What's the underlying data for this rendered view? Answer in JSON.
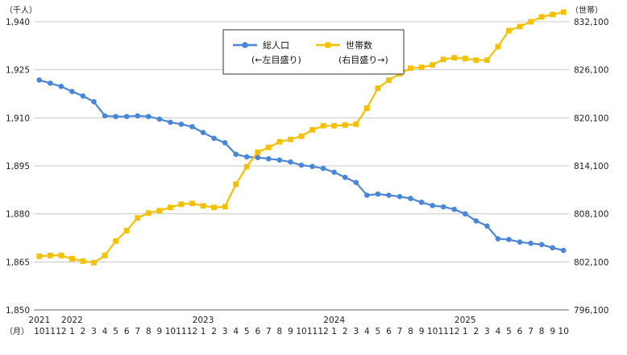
{
  "chart_data": {
    "type": "line",
    "left_axis": {
      "unit": "（千人）",
      "ticks": [
        "1,850",
        "1,865",
        "1,880",
        "1,895",
        "1,910",
        "1,925",
        "1,940"
      ],
      "ylim": [
        1850,
        1940
      ]
    },
    "right_axis": {
      "unit": "（世帯）",
      "ticks": [
        "796,100",
        "802,100",
        "808,100",
        "814,100",
        "820,100",
        "826,100",
        "832,100"
      ],
      "ylim": [
        796100,
        832100
      ]
    },
    "month_axis_unit": "（月）",
    "months": [
      "10",
      "11",
      "12",
      "1",
      "2",
      "3",
      "4",
      "5",
      "6",
      "7",
      "8",
      "9",
      "10",
      "11",
      "12",
      "1",
      "2",
      "3",
      "4",
      "5",
      "6",
      "7",
      "8",
      "9",
      "10",
      "11",
      "12",
      "1",
      "2",
      "3",
      "4",
      "5",
      "6",
      "7",
      "8",
      "9",
      "10",
      "11",
      "12",
      "1",
      "2",
      "3",
      "4",
      "5",
      "6",
      "7",
      "8",
      "9",
      "10"
    ],
    "year_labels": [
      {
        "label": "2021",
        "index": 0
      },
      {
        "label": "2022",
        "index": 3
      },
      {
        "label": "2023",
        "index": 15
      },
      {
        "label": "2024",
        "index": 27
      },
      {
        "label": "2025",
        "index": 39
      }
    ],
    "series": [
      {
        "name": "総人口",
        "legend_note": "(←左目盛り)",
        "axis": "left",
        "color": "#4a86d8",
        "marker": "circle",
        "values": [
          1921.8,
          1920.8,
          1919.8,
          1918.2,
          1916.8,
          1915.0,
          1910.6,
          1910.4,
          1910.4,
          1910.6,
          1910.4,
          1909.6,
          1908.6,
          1908.0,
          1907.2,
          1905.4,
          1903.6,
          1902.2,
          1898.6,
          1897.8,
          1897.6,
          1897.2,
          1896.8,
          1896.2,
          1895.2,
          1894.8,
          1894.2,
          1893.0,
          1891.4,
          1889.8,
          1885.8,
          1886.2,
          1885.8,
          1885.4,
          1884.8,
          1883.6,
          1882.6,
          1882.2,
          1881.4,
          1880.0,
          1877.8,
          1876.2,
          1872.2,
          1872.0,
          1871.2,
          1870.8,
          1870.4,
          1869.4,
          1868.6
        ]
      },
      {
        "name": "世帯数",
        "legend_note": "(右目盛り→)",
        "axis": "right",
        "color": "#f5c000",
        "marker": "square",
        "values": [
          802800,
          802900,
          802900,
          802500,
          802200,
          802000,
          802900,
          804700,
          806000,
          807600,
          808200,
          808500,
          808900,
          809300,
          809400,
          809100,
          808900,
          809000,
          811800,
          814000,
          815800,
          816400,
          817100,
          817400,
          817800,
          818600,
          819100,
          819100,
          819200,
          819300,
          821300,
          823800,
          824800,
          825600,
          826300,
          826400,
          826700,
          827400,
          827600,
          827500,
          827300,
          827300,
          829000,
          831000,
          831500,
          832100,
          832700,
          833000,
          833300
        ]
      }
    ],
    "grid": true,
    "legend_position": "top-center"
  }
}
